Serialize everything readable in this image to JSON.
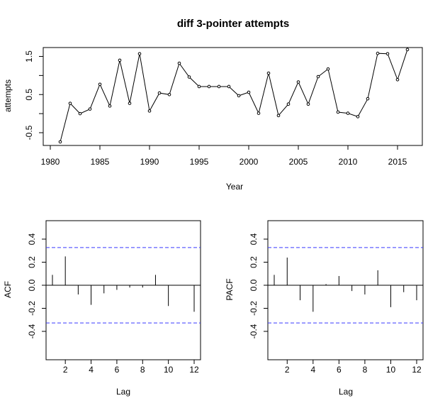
{
  "chart_data": [
    {
      "type": "line",
      "title": "diff 3-pointer attempts",
      "xlabel": "Year",
      "ylabel": "attempts",
      "xlim": [
        1980,
        2016
      ],
      "ylim": [
        -0.8,
        1.8
      ],
      "xticks": [
        "1980",
        "1985",
        "1990",
        "1995",
        "2000",
        "2005",
        "2010",
        "2015"
      ],
      "yticks": [
        "-0.5",
        "0.5",
        "1.5"
      ],
      "x": [
        1981,
        1982,
        1983,
        1984,
        1985,
        1986,
        1987,
        1988,
        1989,
        1990,
        1991,
        1992,
        1993,
        1994,
        1995,
        1996,
        1997,
        1998,
        1999,
        2000,
        2001,
        2002,
        2003,
        2004,
        2005,
        2006,
        2007,
        2008,
        2009,
        2010,
        2011,
        2012,
        2013,
        2014,
        2015,
        2016
      ],
      "values": [
        -0.74,
        0.27,
        0.0,
        0.12,
        0.77,
        0.2,
        1.4,
        0.27,
        1.57,
        0.07,
        0.54,
        0.5,
        1.32,
        0.96,
        0.71,
        0.71,
        0.71,
        0.71,
        0.47,
        0.56,
        0.01,
        1.06,
        -0.05,
        0.25,
        0.83,
        0.25,
        0.97,
        1.17,
        0.04,
        0.01,
        -0.08,
        0.39,
        1.58,
        1.57,
        0.89,
        1.68
      ]
    },
    {
      "type": "bar",
      "xlabel": "Lag",
      "ylabel": "ACF",
      "xlim": [
        0.5,
        12.5
      ],
      "ylim": [
        -0.55,
        0.55
      ],
      "xticks": [
        "2",
        "4",
        "6",
        "8",
        "10",
        "12"
      ],
      "yticks": [
        "-0.4",
        "-0.2",
        "0.0",
        "0.2",
        "0.4"
      ],
      "ci": 0.327,
      "ci_color": "#3a3aff",
      "categories": [
        1,
        2,
        3,
        4,
        5,
        6,
        7,
        8,
        9,
        10,
        11,
        12
      ],
      "values": [
        0.09,
        0.25,
        -0.08,
        -0.17,
        -0.07,
        -0.04,
        -0.02,
        -0.02,
        0.09,
        -0.18,
        0.0,
        -0.23
      ]
    },
    {
      "type": "bar",
      "xlabel": "Lag",
      "ylabel": "PACF",
      "xlim": [
        0.5,
        12.5
      ],
      "ylim": [
        -0.55,
        0.55
      ],
      "xticks": [
        "2",
        "4",
        "6",
        "8",
        "10",
        "12"
      ],
      "yticks": [
        "-0.4",
        "-0.2",
        "0.0",
        "0.2",
        "0.4"
      ],
      "ci": 0.327,
      "ci_color": "#3a3aff",
      "categories": [
        1,
        2,
        3,
        4,
        5,
        6,
        7,
        8,
        9,
        10,
        11,
        12
      ],
      "values": [
        0.09,
        0.24,
        -0.13,
        -0.23,
        0.01,
        0.08,
        -0.05,
        -0.08,
        0.13,
        -0.19,
        -0.06,
        -0.13
      ]
    }
  ]
}
